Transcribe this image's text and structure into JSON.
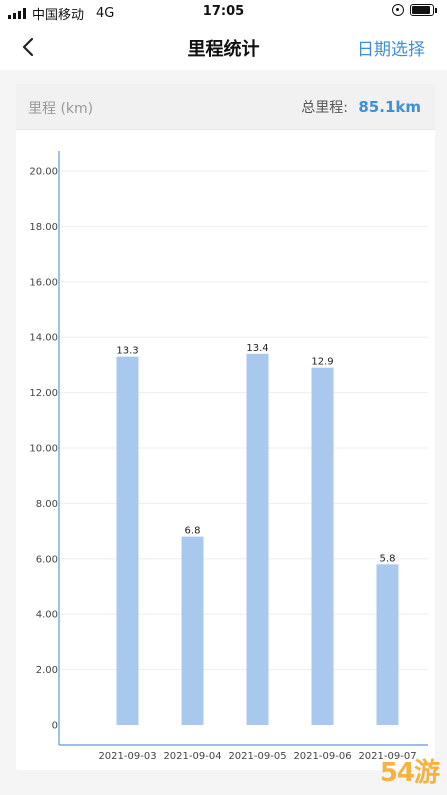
{
  "status_bar": {
    "carrier": "中国移动",
    "network": "4G",
    "time": "17:05"
  },
  "nav": {
    "title": "里程统计",
    "date_select_label": "日期选择",
    "back_icon": "chevron-left-icon"
  },
  "summary": {
    "unit_label": "里程 (km)",
    "total_label": "总里程:",
    "total_value": "85.1km"
  },
  "colors": {
    "accent": "#3d8fd6",
    "bar": "#a9c8ee",
    "axis": "#5a9bd8"
  },
  "chart_data": {
    "type": "bar",
    "categories": [
      "2021-09-03",
      "2021-09-04",
      "2021-09-05",
      "2021-09-06",
      "2021-09-07"
    ],
    "values": [
      13.3,
      6.8,
      13.4,
      12.9,
      5.8
    ],
    "value_labels": [
      "13.3",
      "6.8",
      "13.4",
      "12.9",
      "5.8"
    ],
    "y_ticks": [
      "0",
      "2.00",
      "4.00",
      "6.00",
      "8.00",
      "10.00",
      "12.00",
      "14.00",
      "16.00",
      "18.00",
      "20.00"
    ],
    "ylim": [
      0,
      20
    ],
    "title": "",
    "xlabel": "",
    "ylabel": "里程 (km)",
    "grid": true
  },
  "watermark": "54游"
}
